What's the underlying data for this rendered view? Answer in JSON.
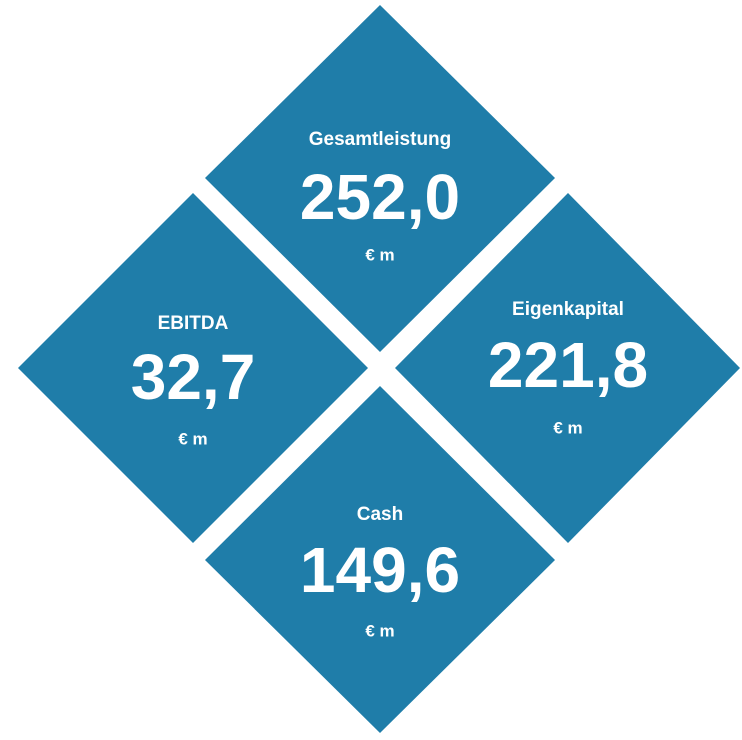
{
  "nodes": [
    {
      "label": "Gesamtleistung",
      "value": "252,0",
      "unit": "€ m"
    },
    {
      "label": "EBITDA",
      "value": "32,7",
      "unit": "€ m"
    },
    {
      "label": "Eigenkapital",
      "value": "221,8",
      "unit": "€ m"
    },
    {
      "label": "Cash",
      "value": "149,6",
      "unit": "€ m"
    }
  ]
}
